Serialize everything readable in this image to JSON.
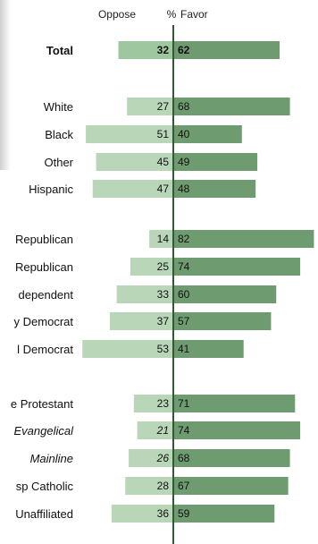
{
  "chart_data": {
    "type": "bar",
    "header": {
      "oppose": "Oppose",
      "pct": "%",
      "favor": "Favor"
    },
    "colors": {
      "oppose_bar": "#b9d6b9",
      "favor_bar": "#6e9c70",
      "total_oppose_bar": "#9ec79f",
      "axis": "#2f5a33"
    },
    "rows": [
      {
        "label": "Total",
        "oppose": 32,
        "favor": 62,
        "bold": true
      },
      {
        "label": "White",
        "oppose": 27,
        "favor": 68
      },
      {
        "label": "Black",
        "oppose": 51,
        "favor": 40
      },
      {
        "label": "Other",
        "oppose": 45,
        "favor": 49
      },
      {
        "label": "Hispanic",
        "oppose": 47,
        "favor": 48
      },
      {
        "label": "Republican",
        "oppose": 14,
        "favor": 82
      },
      {
        "label": "Republican",
        "oppose": 25,
        "favor": 74
      },
      {
        "label": "dependent",
        "oppose": 33,
        "favor": 60
      },
      {
        "label": "y Democrat",
        "oppose": 37,
        "favor": 57
      },
      {
        "label": "l Democrat",
        "oppose": 53,
        "favor": 41
      },
      {
        "label": "e Protestant",
        "oppose": 23,
        "favor": 71
      },
      {
        "label": "Evangelical",
        "oppose": 21,
        "favor": 74,
        "italic": true
      },
      {
        "label": "Mainline",
        "oppose": 26,
        "favor": 68,
        "italic": true
      },
      {
        "label": "sp Catholic",
        "oppose": 28,
        "favor": 67
      },
      {
        "label": "Unaffiliated",
        "oppose": 36,
        "favor": 59
      }
    ]
  }
}
